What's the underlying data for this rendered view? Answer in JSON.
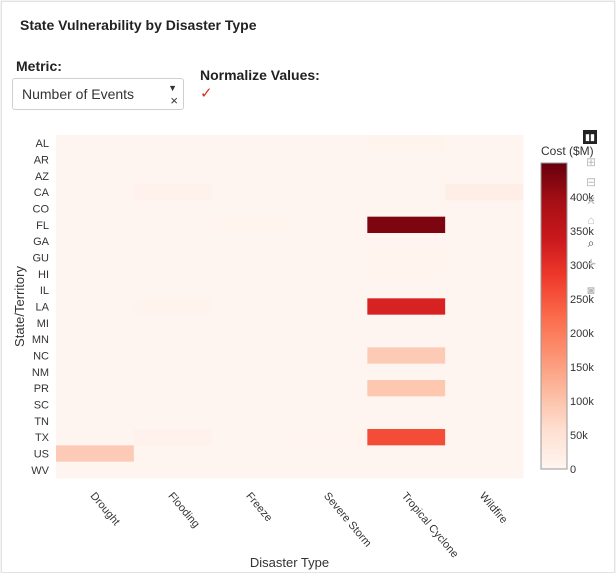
{
  "header": {
    "title": "State Vulnerability by Disaster Type"
  },
  "controls": {
    "metric_label": "Metric:",
    "metric_value": "Number of Events",
    "normalize_label": "Normalize Values:",
    "normalize_checked": true
  },
  "modebar": {
    "icons": [
      "bar-chart-icon",
      "zoom-in-icon",
      "zoom-out-icon",
      "autoscale-icon",
      "home-icon",
      "zoom-icon",
      "pan-icon",
      "camera-icon"
    ]
  },
  "chart_data": {
    "type": "heatmap",
    "xlabel": "Disaster Type",
    "ylabel": "State/Territory",
    "x": [
      "Drought",
      "Flooding",
      "Freeze",
      "Severe Storm",
      "Tropical Cyclone",
      "Wildfire"
    ],
    "y": [
      "AL",
      "AR",
      "AZ",
      "CA",
      "CO",
      "FL",
      "GA",
      "GU",
      "HI",
      "IL",
      "LA",
      "MI",
      "MN",
      "NC",
      "NM",
      "PR",
      "SC",
      "TN",
      "TX",
      "US",
      "WV"
    ],
    "z": [
      [
        0,
        0,
        0,
        0,
        5000,
        0
      ],
      [
        0,
        0,
        0,
        0,
        0,
        0
      ],
      [
        0,
        0,
        0,
        0,
        0,
        0
      ],
      [
        0,
        10000,
        0,
        0,
        0,
        20000
      ],
      [
        0,
        0,
        0,
        0,
        0,
        0
      ],
      [
        0,
        0,
        3000,
        0,
        430000,
        0
      ],
      [
        0,
        0,
        0,
        0,
        2000,
        0
      ],
      [
        0,
        0,
        0,
        0,
        3000,
        0
      ],
      [
        0,
        0,
        0,
        0,
        3000,
        0
      ],
      [
        0,
        0,
        0,
        0,
        0,
        0
      ],
      [
        0,
        5000,
        0,
        0,
        320000,
        0
      ],
      [
        0,
        0,
        0,
        0,
        0,
        0
      ],
      [
        0,
        0,
        0,
        0,
        0,
        0
      ],
      [
        0,
        0,
        0,
        0,
        90000,
        0
      ],
      [
        0,
        0,
        0,
        0,
        0,
        0
      ],
      [
        0,
        0,
        0,
        0,
        95000,
        0
      ],
      [
        0,
        0,
        0,
        0,
        0,
        0
      ],
      [
        0,
        0,
        0,
        0,
        0,
        0
      ],
      [
        0,
        7000,
        0,
        3000,
        260000,
        0
      ],
      [
        90000,
        0,
        0,
        0,
        0,
        0
      ],
      [
        0,
        0,
        0,
        0,
        0,
        0
      ]
    ],
    "colorbar": {
      "title": "Cost ($M)",
      "range": [
        0,
        450000
      ],
      "ticks": [
        0,
        50000,
        100000,
        150000,
        200000,
        250000,
        300000,
        350000,
        400000
      ],
      "tick_labels": [
        "0",
        "50k",
        "100k",
        "150k",
        "200k",
        "250k",
        "300k",
        "350k",
        "400k"
      ]
    },
    "colorscale": [
      "#fff5f0",
      "#fee0d2",
      "#fcbba1",
      "#fc9272",
      "#fb6a4a",
      "#ef3b2c",
      "#cb181d",
      "#a50f15",
      "#67000d"
    ]
  }
}
